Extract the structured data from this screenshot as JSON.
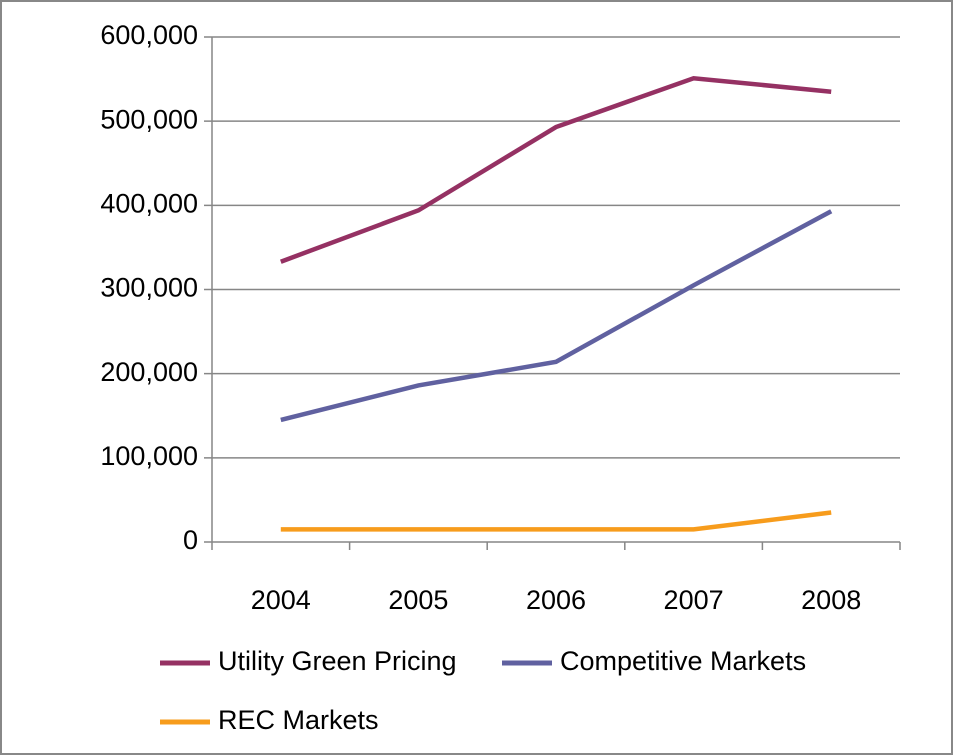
{
  "chart_data": {
    "type": "line",
    "categories": [
      "2004",
      "2005",
      "2006",
      "2007",
      "2008"
    ],
    "series": [
      {
        "name": "Utility Green Pricing",
        "color": "#953163",
        "values": [
          333000,
          394000,
          493000,
          551000,
          535000
        ]
      },
      {
        "name": "Competitive Markets",
        "color": "#6061a0",
        "values": [
          145000,
          186000,
          214000,
          305000,
          393000
        ]
      },
      {
        "name": "REC Markets",
        "color": "#f79c1c",
        "values": [
          15000,
          15000,
          15000,
          15000,
          35000
        ]
      }
    ],
    "ylim": [
      0,
      600000
    ],
    "yticks": [
      0,
      {
        "value": 100000,
        "label": "100,000"
      },
      {
        "value": 200000,
        "label": "200,000"
      },
      {
        "value": 300000,
        "label": "300,000"
      },
      {
        "value": 400000,
        "label": "400,000"
      },
      {
        "value": 500000,
        "label": "500,000"
      },
      {
        "value": 600000,
        "label": "600,000"
      }
    ],
    "grid": true
  }
}
